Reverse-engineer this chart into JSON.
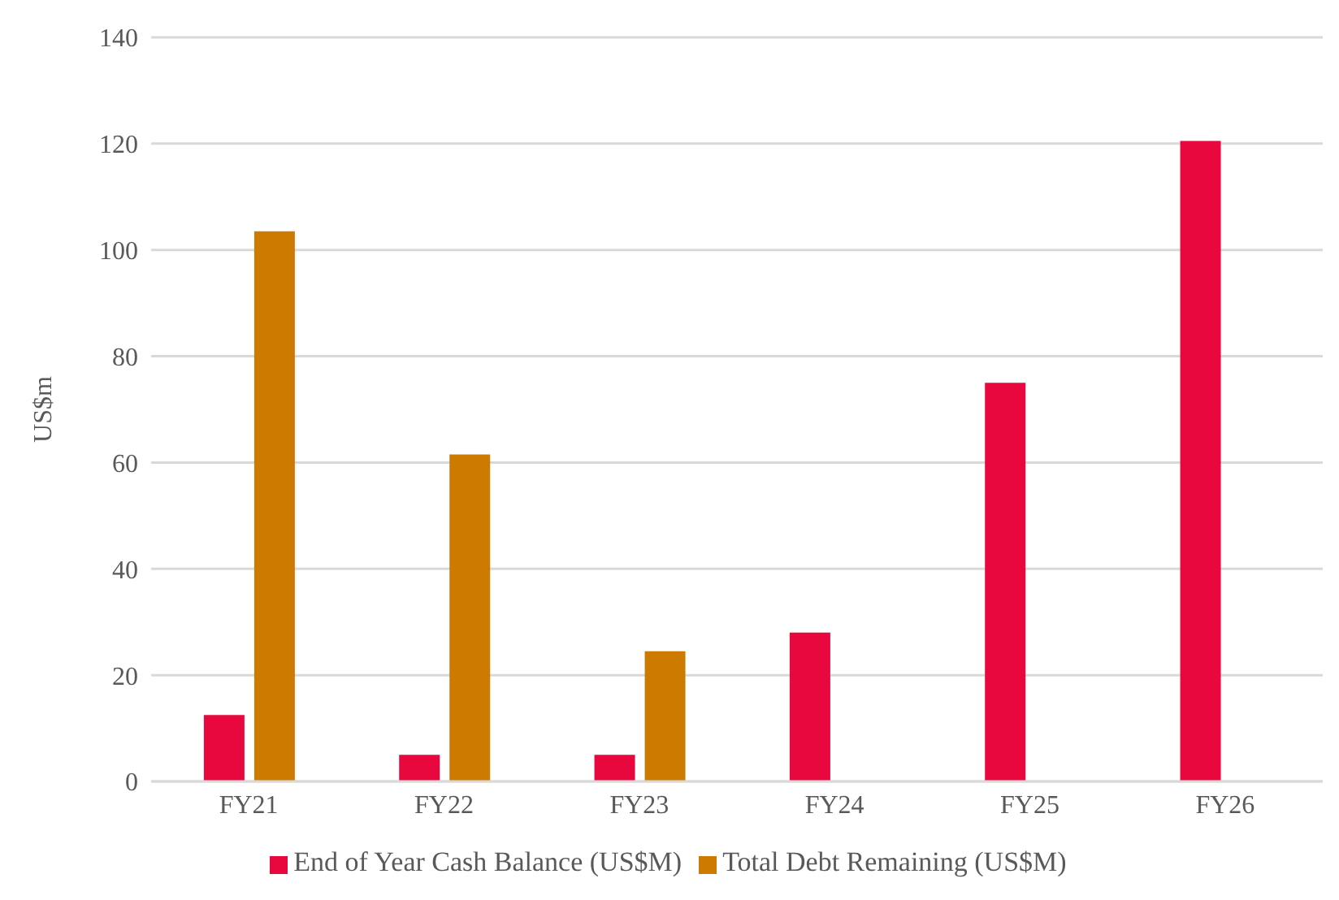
{
  "chart_data": {
    "type": "bar",
    "ylabel": "US$m",
    "categories": [
      "FY21",
      "FY22",
      "FY23",
      "FY24",
      "FY25",
      "FY26"
    ],
    "series": [
      {
        "name": "End of Year Cash Balance (US$M)",
        "color": "#e8083e",
        "values": [
          12.5,
          5,
          5,
          28,
          75,
          120.5
        ]
      },
      {
        "name": "Total Debt Remaining (US$M)",
        "color": "#cc7a00",
        "values": [
          103.5,
          61.5,
          24.5,
          null,
          null,
          null
        ]
      }
    ],
    "ylim": [
      0,
      140
    ],
    "yticks": [
      0,
      20,
      40,
      60,
      80,
      100,
      120,
      140
    ],
    "grid": "y",
    "legend": "bottom"
  }
}
